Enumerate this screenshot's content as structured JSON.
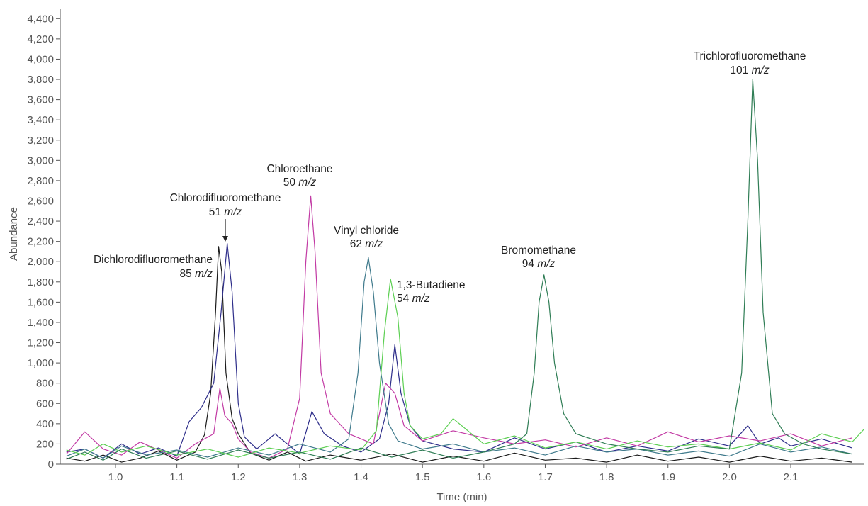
{
  "chart_data": {
    "type": "line",
    "title": "",
    "xlabel": "Time (min)",
    "ylabel": "Abundance",
    "xlim": [
      0.91,
      2.22
    ],
    "ylim": [
      0,
      4500
    ],
    "x_ticks": [
      1.0,
      1.1,
      1.2,
      1.3,
      1.4,
      1.5,
      1.6,
      1.7,
      1.8,
      1.9,
      2.0,
      2.1
    ],
    "x_tick_labels": [
      "1.0",
      "1.1",
      "1.2",
      "1.3",
      "1.4",
      "1.5",
      "1.6",
      "1.7",
      "1.8",
      "1.9",
      "2.0",
      "2.1"
    ],
    "y_ticks": [
      0,
      200,
      400,
      600,
      800,
      1000,
      1200,
      1400,
      1600,
      1800,
      2000,
      2200,
      2400,
      2600,
      2800,
      3000,
      3200,
      3400,
      3600,
      3800,
      4000,
      4200,
      4400
    ],
    "y_tick_labels": [
      "0",
      "200",
      "400",
      "600",
      "800",
      "1,000",
      "1,200",
      "1,400",
      "1,600",
      "1,800",
      "2,000",
      "2,200",
      "2,400",
      "2,600",
      "2,800",
      "3,000",
      "3,200",
      "3,400",
      "3,600",
      "3,800",
      "4,000",
      "4,200",
      "4,400"
    ],
    "grid": false,
    "legend": "none",
    "series": [
      {
        "color": "#1a1a1a",
        "x": [
          0.92,
          0.95,
          0.98,
          1.01,
          1.04,
          1.07,
          1.1,
          1.13,
          1.145,
          1.155,
          1.163,
          1.168,
          1.173,
          1.18,
          1.19,
          1.2,
          1.22,
          1.25,
          1.28,
          1.31,
          1.35,
          1.4,
          1.45,
          1.5,
          1.55,
          1.6,
          1.65,
          1.7,
          1.75,
          1.8,
          1.85,
          1.9,
          1.95,
          2.0,
          2.05,
          2.1,
          2.15,
          2.2
        ],
        "y": [
          60,
          30,
          90,
          20,
          60,
          130,
          40,
          120,
          290,
          700,
          1500,
          2150,
          1900,
          900,
          450,
          300,
          110,
          40,
          120,
          30,
          90,
          40,
          100,
          20,
          80,
          30,
          110,
          40,
          60,
          20,
          90,
          30,
          70,
          20,
          80,
          30,
          60,
          20
        ]
      },
      {
        "color": "#2e2e8a",
        "x": [
          0.92,
          0.95,
          0.98,
          1.01,
          1.04,
          1.07,
          1.1,
          1.12,
          1.14,
          1.16,
          1.172,
          1.182,
          1.19,
          1.2,
          1.21,
          1.23,
          1.26,
          1.3,
          1.32,
          1.34,
          1.37,
          1.4,
          1.43,
          1.445,
          1.455,
          1.465,
          1.48,
          1.5,
          1.55,
          1.6,
          1.65,
          1.7,
          1.75,
          1.8,
          1.85,
          1.9,
          1.95,
          2.0,
          2.03,
          2.05,
          2.08,
          2.1,
          2.15,
          2.2
        ],
        "y": [
          120,
          150,
          60,
          200,
          100,
          160,
          80,
          420,
          560,
          800,
          1500,
          2180,
          1700,
          600,
          270,
          150,
          300,
          100,
          520,
          300,
          180,
          120,
          250,
          600,
          1180,
          700,
          380,
          230,
          150,
          120,
          260,
          150,
          220,
          120,
          180,
          130,
          250,
          180,
          380,
          200,
          260,
          180,
          250,
          160
        ]
      },
      {
        "color": "#c23aa4",
        "x": [
          0.92,
          0.95,
          0.98,
          1.01,
          1.04,
          1.07,
          1.1,
          1.13,
          1.16,
          1.17,
          1.178,
          1.19,
          1.2,
          1.22,
          1.25,
          1.28,
          1.3,
          1.31,
          1.318,
          1.325,
          1.335,
          1.35,
          1.38,
          1.42,
          1.44,
          1.455,
          1.47,
          1.5,
          1.55,
          1.6,
          1.65,
          1.7,
          1.75,
          1.8,
          1.85,
          1.9,
          1.95,
          2.0,
          2.05,
          2.1,
          2.15,
          2.2
        ],
        "y": [
          100,
          320,
          150,
          90,
          220,
          140,
          60,
          200,
          300,
          750,
          480,
          400,
          250,
          120,
          60,
          150,
          650,
          2000,
          2650,
          2100,
          900,
          500,
          300,
          200,
          800,
          700,
          380,
          230,
          330,
          260,
          200,
          240,
          170,
          260,
          180,
          320,
          220,
          280,
          230,
          300,
          180,
          260
        ]
      },
      {
        "color": "#3f7a8c",
        "x": [
          0.92,
          0.95,
          0.98,
          1.01,
          1.05,
          1.1,
          1.15,
          1.2,
          1.25,
          1.3,
          1.35,
          1.38,
          1.395,
          1.405,
          1.412,
          1.42,
          1.43,
          1.445,
          1.46,
          1.5,
          1.55,
          1.6,
          1.65,
          1.7,
          1.75,
          1.8,
          1.85,
          1.9,
          1.95,
          2.0,
          2.05,
          2.1,
          2.15,
          2.2
        ],
        "y": [
          80,
          150,
          60,
          180,
          90,
          140,
          70,
          160,
          90,
          200,
          120,
          250,
          900,
          1800,
          2040,
          1700,
          1000,
          400,
          230,
          150,
          200,
          120,
          160,
          90,
          180,
          120,
          150,
          90,
          130,
          80,
          200,
          120,
          170,
          100
        ]
      },
      {
        "color": "#5ccf52",
        "x": [
          0.92,
          0.95,
          0.98,
          1.01,
          1.05,
          1.1,
          1.15,
          1.2,
          1.25,
          1.3,
          1.35,
          1.4,
          1.425,
          1.438,
          1.448,
          1.46,
          1.47,
          1.48,
          1.5,
          1.53,
          1.55,
          1.6,
          1.65,
          1.7,
          1.75,
          1.8,
          1.85,
          1.9,
          1.95,
          2.0,
          2.05,
          2.1,
          2.15,
          2.2,
          2.22
        ],
        "y": [
          140,
          90,
          200,
          120,
          180,
          90,
          150,
          70,
          160,
          110,
          180,
          140,
          330,
          1300,
          1830,
          1450,
          700,
          380,
          250,
          300,
          450,
          200,
          280,
          160,
          220,
          150,
          230,
          170,
          200,
          150,
          210,
          140,
          300,
          220,
          350
        ]
      },
      {
        "color": "#2f7d55",
        "x": [
          0.92,
          0.95,
          0.98,
          1.01,
          1.05,
          1.1,
          1.15,
          1.2,
          1.25,
          1.3,
          1.35,
          1.4,
          1.45,
          1.5,
          1.55,
          1.6,
          1.65,
          1.67,
          1.682,
          1.69,
          1.698,
          1.706,
          1.715,
          1.73,
          1.75,
          1.8,
          1.85,
          1.9,
          1.95,
          2.0,
          2.02,
          2.03,
          2.038,
          2.046,
          2.055,
          2.07,
          2.09,
          2.12,
          2.15,
          2.2
        ],
        "y": [
          50,
          120,
          40,
          150,
          60,
          130,
          50,
          140,
          60,
          120,
          50,
          160,
          70,
          140,
          60,
          120,
          200,
          300,
          900,
          1600,
          1870,
          1600,
          1000,
          500,
          300,
          200,
          150,
          120,
          180,
          150,
          900,
          2400,
          3800,
          3000,
          1500,
          500,
          300,
          200,
          150,
          100
        ]
      }
    ],
    "annotations": [
      {
        "name": "Trichlorofluoromethane",
        "mz": "101",
        "unit": "m/z"
      },
      {
        "name": "Bromomethane",
        "mz": "94",
        "unit": "m/z"
      },
      {
        "name": "1,3-Butadiene",
        "mz": "54",
        "unit": "m/z"
      },
      {
        "name": "Vinyl chloride",
        "mz": "62",
        "unit": "m/z"
      },
      {
        "name": "Chloroethane",
        "mz": "50",
        "unit": "m/z"
      },
      {
        "name": "Chlorodifluoromethane",
        "mz": "51",
        "unit": "m/z"
      },
      {
        "name": "Dichlorodifluoromethane",
        "mz": "85",
        "unit": "m/z"
      }
    ]
  }
}
